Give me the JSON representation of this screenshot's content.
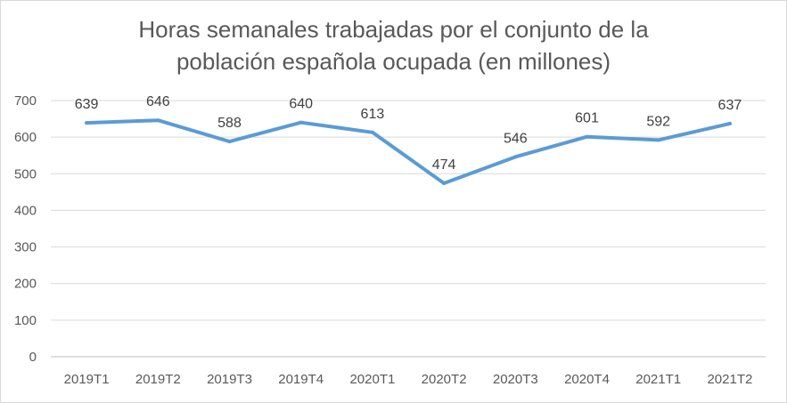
{
  "chart_data": {
    "type": "line",
    "title_lines": [
      "Horas semanales trabajadas por el conjunto de la",
      "población española ocupada (en millones)"
    ],
    "categories": [
      "2019T1",
      "2019T2",
      "2019T3",
      "2019T4",
      "2020T1",
      "2020T2",
      "2020T3",
      "2020T4",
      "2021T1",
      "2021T2"
    ],
    "series": [
      {
        "values": [
          639,
          646,
          588,
          640,
          613,
          474,
          546,
          601,
          592,
          637
        ],
        "color": "#5b9bd5"
      }
    ],
    "y_ticks": [
      0,
      100,
      200,
      300,
      400,
      500,
      600,
      700
    ],
    "ylim": [
      0,
      700
    ],
    "grid": true,
    "legend": "none",
    "xlabel": "",
    "ylabel": ""
  }
}
